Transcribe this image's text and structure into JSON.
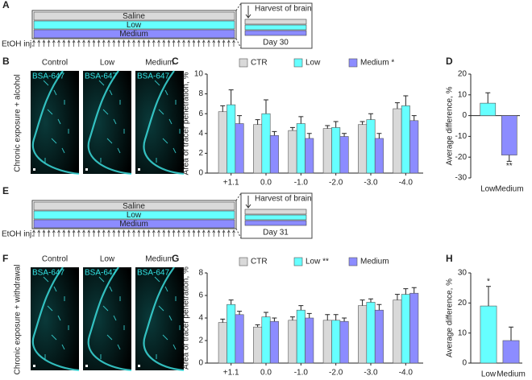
{
  "panel_labels": [
    "A",
    "B",
    "C",
    "D",
    "E",
    "F",
    "G",
    "H"
  ],
  "timeline_a": {
    "groups": [
      "Saline",
      "Low",
      "Medium"
    ],
    "injection": "EtOH inj.",
    "harvest": "Harvest of brain",
    "day": "Day 30"
  },
  "timeline_e": {
    "groups": [
      "Saline",
      "Low",
      "Medium"
    ],
    "injection": "EtOH inj.",
    "harvest": "Harvest of brain",
    "day": "Day 31"
  },
  "images_b": {
    "columns": [
      "Control",
      "Low",
      "Medium"
    ],
    "stain": "BSA-647",
    "condition": "Chronic exposure + alcohol"
  },
  "images_f": {
    "columns": [
      "Control",
      "Low",
      "Medium"
    ],
    "stain": "BSA-647",
    "condition": "Chronic exposure + withdrawal"
  },
  "chart_data": [
    {
      "type": "bar",
      "y_label": "Area of tracer penetration, %",
      "categories": [
        "+1.1",
        "0.0",
        "-1.0",
        "-2.0",
        "-3.0",
        "-4.0"
      ],
      "series": [
        {
          "name": "CTR",
          "color": "#d9d9d9",
          "values": [
            6.2,
            4.9,
            4.3,
            4.5,
            4.9,
            6.5
          ],
          "errors": [
            0.6,
            0.5,
            0.3,
            0.3,
            0.3,
            0.6
          ]
        },
        {
          "name": "Low",
          "color": "#66ffff",
          "values": [
            6.9,
            6.0,
            5.0,
            4.6,
            5.4,
            6.8
          ],
          "errors": [
            1.5,
            1.4,
            0.7,
            0.6,
            0.6,
            1.0
          ]
        },
        {
          "name": "Medium *",
          "color": "#8c8cff",
          "values": [
            5.0,
            3.8,
            3.5,
            3.7,
            3.5,
            5.3
          ],
          "errors": [
            0.8,
            0.4,
            0.5,
            0.3,
            0.5,
            0.5
          ]
        }
      ],
      "ylim": [
        0,
        10
      ],
      "yticks": [
        0,
        2,
        4,
        6,
        8,
        10
      ]
    },
    {
      "type": "bar",
      "y_label": "Average difference, %",
      "categories": [
        "Low",
        "Medium"
      ],
      "values": [
        6,
        -19
      ],
      "errors": [
        5,
        3
      ],
      "colors": [
        "#66ffff",
        "#8c8cff"
      ],
      "value_annotations": [
        null,
        "**"
      ],
      "ylim": [
        -30,
        20
      ],
      "yticks": [
        -30,
        -20,
        -10,
        0,
        10,
        20
      ]
    },
    {
      "type": "bar",
      "y_label": "Area of tracer penetration, %",
      "categories": [
        "+1.1",
        "0.0",
        "-1.0",
        "-2.0",
        "-3.0",
        "-4.0"
      ],
      "series": [
        {
          "name": "CTR",
          "color": "#d9d9d9",
          "values": [
            3.6,
            3.2,
            3.8,
            3.8,
            5.1,
            5.6
          ],
          "errors": [
            0.3,
            0.2,
            0.3,
            0.5,
            0.5,
            0.5
          ]
        },
        {
          "name": "Low **",
          "color": "#66ffff",
          "values": [
            5.2,
            4.1,
            4.7,
            3.8,
            5.4,
            6.1
          ],
          "errors": [
            0.4,
            0.4,
            0.4,
            0.5,
            0.3,
            0.5
          ]
        },
        {
          "name": "Medium",
          "color": "#8c8cff",
          "values": [
            4.3,
            3.7,
            4.0,
            3.7,
            4.7,
            6.2
          ],
          "errors": [
            0.3,
            0.3,
            0.4,
            0.3,
            0.5,
            0.5
          ]
        }
      ],
      "ylim": [
        0,
        8
      ],
      "yticks": [
        0,
        2,
        4,
        6,
        8
      ]
    },
    {
      "type": "bar",
      "y_label": "Average difference, %",
      "categories": [
        "Low",
        "Medium"
      ],
      "values": [
        19,
        7.5
      ],
      "errors": [
        6.5,
        4.5
      ],
      "colors": [
        "#66ffff",
        "#8c8cff"
      ],
      "value_annotations": [
        "*",
        null
      ],
      "ylim": [
        0,
        30
      ],
      "yticks": [
        0,
        10,
        20,
        30
      ]
    }
  ]
}
